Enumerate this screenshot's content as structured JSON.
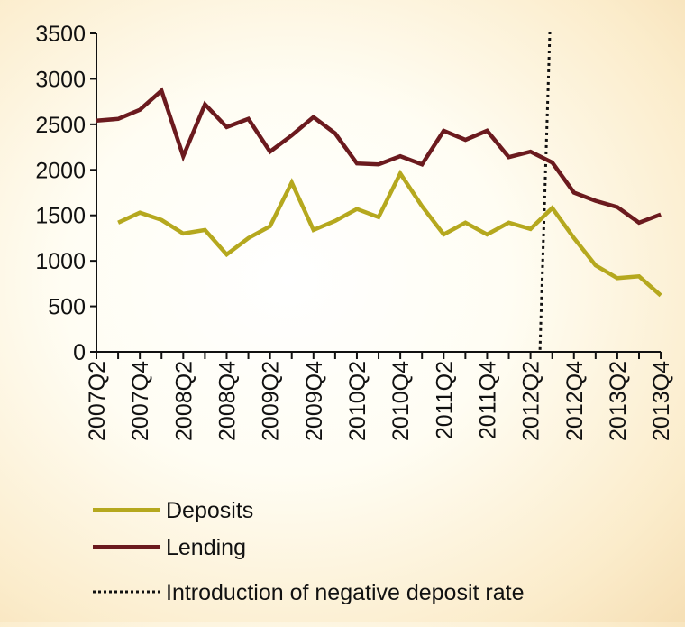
{
  "chart_data": {
    "type": "line",
    "title": "",
    "xlabel": "",
    "ylabel": "",
    "ylim": [
      0,
      3500
    ],
    "yticks": [
      0,
      500,
      1000,
      1500,
      2000,
      2500,
      3000,
      3500
    ],
    "x": [
      "2007Q2",
      "2007Q3",
      "2007Q4",
      "2008Q1",
      "2008Q2",
      "2008Q3",
      "2008Q4",
      "2009Q1",
      "2009Q2",
      "2009Q3",
      "2009Q4",
      "2010Q1",
      "2010Q2",
      "2010Q3",
      "2010Q4",
      "2011Q1",
      "2011Q2",
      "2011Q3",
      "2011Q4",
      "2012Q1",
      "2012Q2",
      "2012Q3",
      "2012Q4",
      "2013Q1",
      "2013Q2",
      "2013Q3",
      "2013Q4"
    ],
    "xtick_labels": [
      "2007Q2",
      "2007Q4",
      "2008Q2",
      "2008Q4",
      "2009Q2",
      "2009Q4",
      "2010Q2",
      "2010Q4",
      "2011Q2",
      "2011Q4",
      "2012Q2",
      "2012Q4",
      "2013Q2",
      "2013Q4"
    ],
    "grid": false,
    "legend_position": "bottom-left",
    "series": [
      {
        "name": "Deposits",
        "color": "#b5a81e",
        "values": [
          null,
          1420,
          1530,
          1450,
          1300,
          1340,
          1070,
          1250,
          1380,
          1860,
          1340,
          1440,
          1570,
          1480,
          1960,
          1600,
          1290,
          1420,
          1290,
          1420,
          1350,
          1580,
          1250,
          950,
          810,
          830,
          620
        ]
      },
      {
        "name": "Lending",
        "color": "#6b1a1e",
        "values": [
          2540,
          2560,
          2660,
          2870,
          2150,
          2720,
          2470,
          2560,
          2200,
          2380,
          2580,
          2400,
          2070,
          2060,
          2150,
          2060,
          2430,
          2330,
          2430,
          2140,
          2200,
          2080,
          1750,
          1660,
          1590,
          1420,
          1510
        ]
      }
    ],
    "annotations": [
      {
        "label": "Introduction of negative deposit rate",
        "type": "vertical-dotted-line",
        "x": "2012Q2-2012Q3"
      }
    ]
  }
}
